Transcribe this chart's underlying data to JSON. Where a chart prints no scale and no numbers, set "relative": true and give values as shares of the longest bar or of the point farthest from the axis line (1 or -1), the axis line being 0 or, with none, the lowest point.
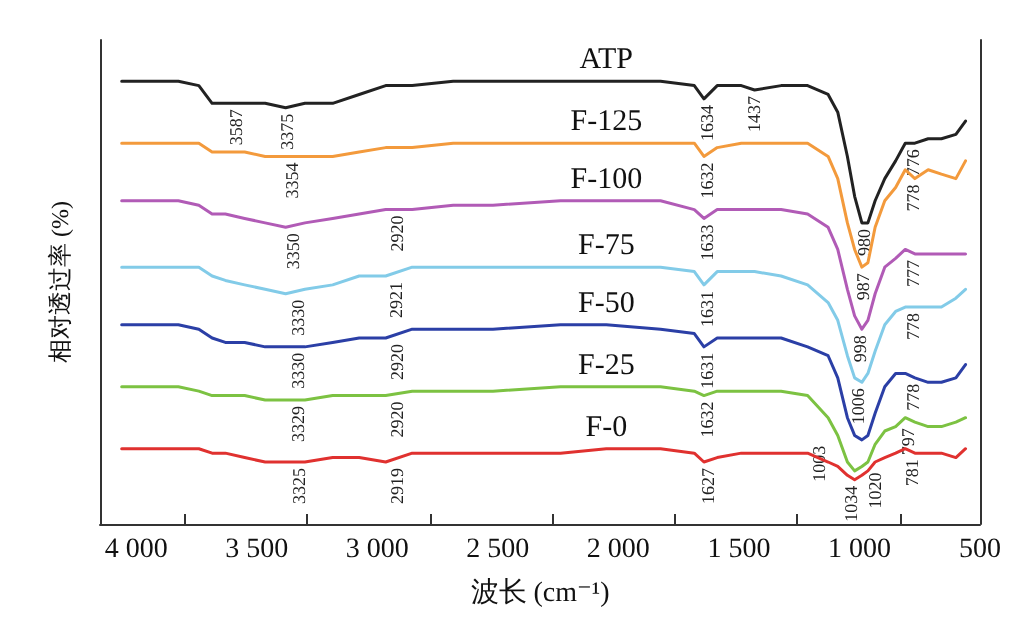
{
  "chart_data": {
    "type": "line",
    "relative": true,
    "marker": "none",
    "xlabel": "波长 (cm⁻¹)",
    "ylabel": "相对透过率 (%)",
    "xlim": [
      4150,
      500
    ],
    "xticks": [
      {
        "value": 4000,
        "label": "4 000"
      },
      {
        "value": 3500,
        "label": "3 500"
      },
      {
        "value": 3000,
        "label": "3 000"
      },
      {
        "value": 2500,
        "label": "2 500"
      },
      {
        "value": 2000,
        "label": "2 000"
      },
      {
        "value": 1500,
        "label": "1 500"
      },
      {
        "value": 1000,
        "label": "1 000"
      },
      {
        "value": 500,
        "label": "500"
      },
      {
        "value": 3800,
        "label": null
      },
      {
        "value": 3290,
        "label": null
      },
      {
        "value": 2780,
        "label": null
      },
      {
        "value": 2270,
        "label": null
      },
      {
        "value": 1770,
        "label": null
      },
      {
        "value": 1260,
        "label": null
      },
      {
        "value": 830,
        "label": null
      }
    ],
    "x": [
      4060,
      3825,
      3740,
      3685,
      3630,
      3550,
      3465,
      3380,
      3300,
      3185,
      3075,
      2965,
      2855,
      2685,
      2520,
      2240,
      2050,
      1825,
      1685,
      1645,
      1590,
      1490,
      1435,
      1325,
      1215,
      1130,
      1090,
      1050,
      1020,
      990,
      965,
      935,
      895,
      850,
      810,
      770,
      715,
      660,
      600,
      560
    ],
    "series": [
      {
        "name": "ATP",
        "color": "#222222",
        "values": [
          1.0,
          1.0,
          0.99,
          0.95,
          0.95,
          0.95,
          0.95,
          0.94,
          0.95,
          0.95,
          0.97,
          0.99,
          0.99,
          1.0,
          1.0,
          1.0,
          1.0,
          1.0,
          0.99,
          0.96,
          0.99,
          0.99,
          0.98,
          0.99,
          0.99,
          0.97,
          0.93,
          0.83,
          0.74,
          0.68,
          0.68,
          0.73,
          0.78,
          0.82,
          0.86,
          0.86,
          0.87,
          0.87,
          0.88,
          0.91
        ]
      },
      {
        "name": "F-125",
        "color": "#f39a3c",
        "values": [
          0.86,
          0.86,
          0.86,
          0.84,
          0.84,
          0.84,
          0.83,
          0.83,
          0.83,
          0.83,
          0.84,
          0.85,
          0.85,
          0.86,
          0.86,
          0.86,
          0.86,
          0.86,
          0.86,
          0.83,
          0.85,
          0.86,
          0.86,
          0.86,
          0.86,
          0.83,
          0.78,
          0.68,
          0.62,
          0.58,
          0.59,
          0.67,
          0.73,
          0.76,
          0.8,
          0.78,
          0.8,
          0.79,
          0.78,
          0.82
        ]
      },
      {
        "name": "F-100",
        "color": "#b15bb6",
        "values": [
          0.73,
          0.73,
          0.72,
          0.7,
          0.7,
          0.69,
          0.68,
          0.67,
          0.68,
          0.69,
          0.7,
          0.71,
          0.71,
          0.72,
          0.72,
          0.73,
          0.73,
          0.73,
          0.71,
          0.69,
          0.71,
          0.71,
          0.71,
          0.71,
          0.7,
          0.67,
          0.62,
          0.53,
          0.47,
          0.44,
          0.46,
          0.52,
          0.58,
          0.6,
          0.62,
          0.61,
          0.61,
          0.61,
          0.61,
          0.61
        ]
      },
      {
        "name": "F-75",
        "color": "#82cbe8",
        "values": [
          0.58,
          0.58,
          0.58,
          0.56,
          0.55,
          0.54,
          0.53,
          0.52,
          0.53,
          0.54,
          0.56,
          0.56,
          0.58,
          0.58,
          0.58,
          0.58,
          0.58,
          0.58,
          0.57,
          0.54,
          0.57,
          0.57,
          0.57,
          0.56,
          0.54,
          0.5,
          0.46,
          0.38,
          0.33,
          0.32,
          0.34,
          0.39,
          0.45,
          0.48,
          0.49,
          0.49,
          0.49,
          0.49,
          0.51,
          0.53
        ]
      },
      {
        "name": "F-50",
        "color": "#2b3fa6",
        "values": [
          0.45,
          0.45,
          0.44,
          0.42,
          0.41,
          0.41,
          0.4,
          0.4,
          0.4,
          0.41,
          0.42,
          0.42,
          0.44,
          0.44,
          0.44,
          0.45,
          0.45,
          0.44,
          0.43,
          0.4,
          0.42,
          0.42,
          0.42,
          0.42,
          0.4,
          0.38,
          0.33,
          0.24,
          0.2,
          0.19,
          0.2,
          0.25,
          0.31,
          0.34,
          0.34,
          0.33,
          0.32,
          0.32,
          0.33,
          0.36
        ]
      },
      {
        "name": "F-25",
        "color": "#7cc242",
        "values": [
          0.31,
          0.31,
          0.3,
          0.29,
          0.29,
          0.29,
          0.28,
          0.28,
          0.28,
          0.29,
          0.29,
          0.29,
          0.3,
          0.3,
          0.3,
          0.31,
          0.31,
          0.31,
          0.3,
          0.29,
          0.3,
          0.3,
          0.3,
          0.3,
          0.29,
          0.24,
          0.2,
          0.14,
          0.12,
          0.13,
          0.14,
          0.18,
          0.21,
          0.22,
          0.24,
          0.23,
          0.22,
          0.22,
          0.23,
          0.24
        ]
      },
      {
        "name": "F-0",
        "color": "#e0312f",
        "values": [
          0.17,
          0.17,
          0.17,
          0.16,
          0.16,
          0.15,
          0.14,
          0.14,
          0.14,
          0.15,
          0.15,
          0.14,
          0.16,
          0.16,
          0.16,
          0.16,
          0.17,
          0.17,
          0.16,
          0.14,
          0.15,
          0.16,
          0.16,
          0.16,
          0.16,
          0.14,
          0.13,
          0.11,
          0.1,
          0.11,
          0.12,
          0.14,
          0.15,
          0.16,
          0.17,
          0.16,
          0.16,
          0.16,
          0.15,
          0.17
        ]
      }
    ],
    "annotations": [
      {
        "text": "3587",
        "x": 3587,
        "y": 0.95
      },
      {
        "text": "3375",
        "x": 3375,
        "y": 0.94
      },
      {
        "text": "1634",
        "x": 1634,
        "y": 0.96
      },
      {
        "text": "1437",
        "x": 1437,
        "y": 0.98
      },
      {
        "text": "980",
        "x": 980,
        "y": 0.68
      },
      {
        "text": "776",
        "x": 776,
        "y": 0.86
      },
      {
        "text": "3354",
        "x": 3354,
        "y": 0.83
      },
      {
        "text": "1632",
        "x": 1632,
        "y": 0.83
      },
      {
        "text": "987",
        "x": 987,
        "y": 0.58
      },
      {
        "text": "778",
        "x": 778,
        "y": 0.78
      },
      {
        "text": "3350",
        "x": 3350,
        "y": 0.67
      },
      {
        "text": "2920",
        "x": 2920,
        "y": 0.71
      },
      {
        "text": "1633",
        "x": 1633,
        "y": 0.69
      },
      {
        "text": "998",
        "x": 998,
        "y": 0.44
      },
      {
        "text": "777",
        "x": 777,
        "y": 0.61
      },
      {
        "text": "3330",
        "x": 3330,
        "y": 0.52
      },
      {
        "text": "2921",
        "x": 2921,
        "y": 0.56
      },
      {
        "text": "1631",
        "x": 1631,
        "y": 0.54
      },
      {
        "text": "1006",
        "x": 1006,
        "y": 0.32
      },
      {
        "text": "778",
        "x": 778,
        "y": 0.49
      },
      {
        "text": "3330",
        "x": 3330,
        "y": 0.4
      },
      {
        "text": "2920",
        "x": 2920,
        "y": 0.42
      },
      {
        "text": "1631",
        "x": 1631,
        "y": 0.4
      },
      {
        "text": "1003",
        "x": 1003,
        "y": 0.19
      },
      {
        "text": "778",
        "x": 778,
        "y": 0.33
      },
      {
        "text": "3329",
        "x": 3329,
        "y": 0.28
      },
      {
        "text": "2920",
        "x": 2920,
        "y": 0.29
      },
      {
        "text": "1632",
        "x": 1632,
        "y": 0.29
      },
      {
        "text": "797",
        "x": 797,
        "y": 0.23
      },
      {
        "text": "3325",
        "x": 3325,
        "y": 0.14
      },
      {
        "text": "2919",
        "x": 2919,
        "y": 0.14
      },
      {
        "text": "1627",
        "x": 1627,
        "y": 0.14
      },
      {
        "text": "1020",
        "x": 1020,
        "y": 0.13
      },
      {
        "text": "1034",
        "x": 1034,
        "y": 0.1
      },
      {
        "text": "781",
        "x": 781,
        "y": 0.16
      }
    ]
  }
}
